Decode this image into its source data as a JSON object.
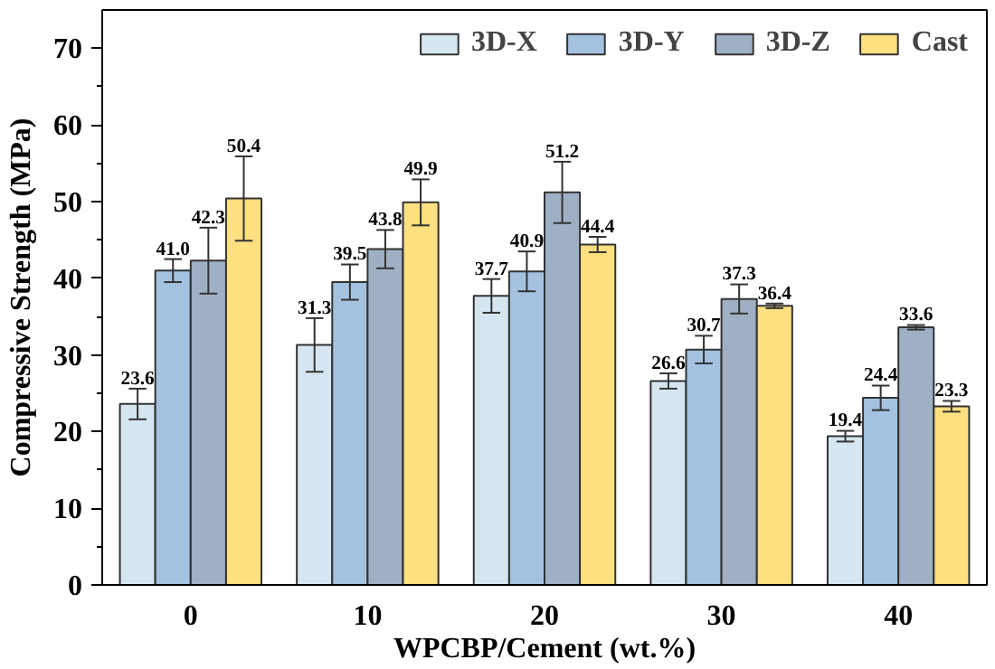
{
  "chart_data": {
    "type": "bar",
    "xlabel": "WPCBP/Cement (wt.%)",
    "ylabel": "Compressive Strength (MPa)",
    "categories": [
      "0",
      "10",
      "20",
      "30",
      "40"
    ],
    "series": [
      {
        "name": "3D-X",
        "color": "#d6e6f0",
        "values": [
          23.6,
          31.3,
          37.7,
          26.6,
          19.4
        ],
        "errors": [
          2.0,
          3.5,
          2.2,
          1.0,
          0.7
        ],
        "value_labels": [
          "23.6",
          "31.3",
          "37.7",
          "26.6",
          "19.4"
        ]
      },
      {
        "name": "3D-Y",
        "color": "#a4c2e0",
        "values": [
          41.0,
          39.5,
          40.9,
          30.7,
          24.4
        ],
        "errors": [
          1.5,
          2.3,
          2.6,
          1.8,
          1.6
        ],
        "value_labels": [
          "41.0",
          "39.5",
          "40.9",
          "30.7",
          "24.4"
        ]
      },
      {
        "name": "3D-Z",
        "color": "#a0b0c4",
        "values": [
          42.3,
          43.8,
          51.2,
          37.3,
          33.6
        ],
        "errors": [
          4.3,
          2.5,
          4.0,
          1.9,
          0.3
        ],
        "value_labels": [
          "42.3",
          "43.8",
          "51.2",
          "37.3",
          "33.6"
        ]
      },
      {
        "name": "Cast",
        "color": "#fde07f",
        "values": [
          50.4,
          49.9,
          44.4,
          36.4,
          23.3
        ],
        "errors": [
          5.5,
          3.0,
          1.0,
          0.3,
          0.7
        ],
        "value_labels": [
          "50.4",
          "49.9",
          "44.4",
          "36.4",
          "23.3"
        ]
      }
    ],
    "ylim": [
      0,
      75
    ],
    "yticks": [
      0,
      10,
      20,
      30,
      40,
      50,
      60,
      70
    ],
    "legend": "top right",
    "grid": false
  }
}
